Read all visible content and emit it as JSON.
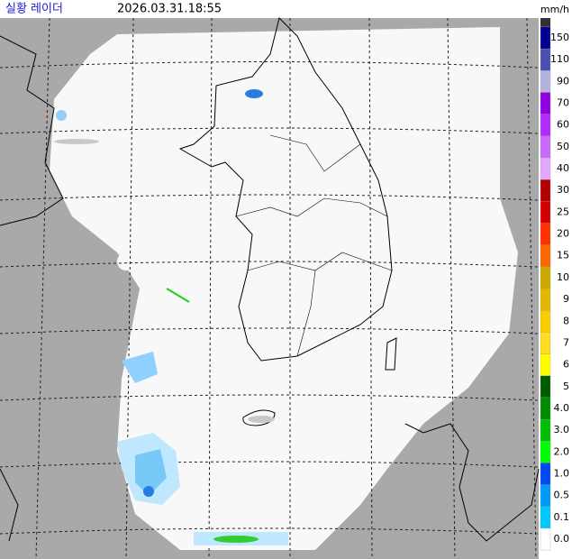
{
  "header": {
    "title": "실황 레이더",
    "timestamp": "2026.03.31.18:55",
    "unit": "mm/h"
  },
  "legend": {
    "levels": [
      {
        "label": "0.0",
        "color": "#ffffff"
      },
      {
        "label": "0.1",
        "color": "#00c8ff"
      },
      {
        "label": "0.5",
        "color": "#009bf5"
      },
      {
        "label": "1.0",
        "color": "#0049f5"
      },
      {
        "label": "2.0",
        "color": "#00ff00"
      },
      {
        "label": "3.0",
        "color": "#00be00"
      },
      {
        "label": "4.0",
        "color": "#008c00"
      },
      {
        "label": "5",
        "color": "#005a00"
      },
      {
        "label": "6",
        "color": "#ffff00"
      },
      {
        "label": "7",
        "color": "#ffdc1f"
      },
      {
        "label": "8",
        "color": "#f9cd00"
      },
      {
        "label": "9",
        "color": "#e0b900"
      },
      {
        "label": "10",
        "color": "#ccaa00"
      },
      {
        "label": "15",
        "color": "#ff6600"
      },
      {
        "label": "20",
        "color": "#ff3200"
      },
      {
        "label": "25",
        "color": "#d20000"
      },
      {
        "label": "30",
        "color": "#b40000"
      },
      {
        "label": "40",
        "color": "#e0a9ff"
      },
      {
        "label": "50",
        "color": "#c969ff"
      },
      {
        "label": "60",
        "color": "#b329ff"
      },
      {
        "label": "70",
        "color": "#9300e4"
      },
      {
        "label": "90",
        "color": "#b3b4de"
      },
      {
        "label": "110",
        "color": "#4c4eb1"
      },
      {
        "label": "150",
        "color": "#000390"
      }
    ],
    "top_color": "#333333"
  }
}
